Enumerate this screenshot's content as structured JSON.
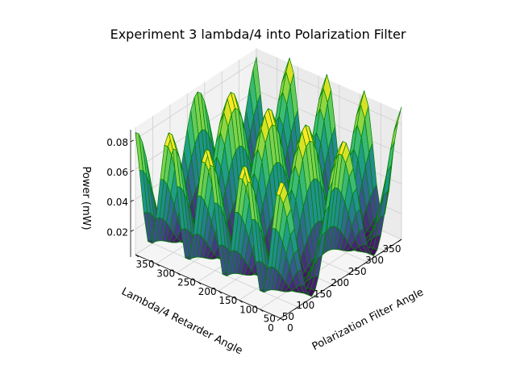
{
  "chart_data": {
    "type": "surface",
    "title": "Experiment 3 lambda/4 into Polarization Filter",
    "xlabel": "Polarization Filter Angle",
    "ylabel": "Lambda/4 Retarder Angle",
    "zlabel": "Power (mW)",
    "xlim": [
      0,
      350
    ],
    "ylim": [
      0,
      350
    ],
    "zlim": [
      0.003,
      0.088
    ],
    "x_ticks": [
      0,
      50,
      100,
      150,
      200,
      250,
      300,
      350
    ],
    "y_ticks": [
      0,
      50,
      100,
      150,
      200,
      250,
      300,
      350
    ],
    "z_ticks": [
      0.02,
      0.04,
      0.06,
      0.08
    ],
    "grid": true,
    "colormap": "viridis",
    "edge_color": "#008000",
    "x_step": 10,
    "y_step": 10,
    "model": "P = 0.045*(1 + cos(2x)) * (0.55 + 0.45*cos(4y)) + 0.004 (mW); x in degrees, y in degrees"
  }
}
